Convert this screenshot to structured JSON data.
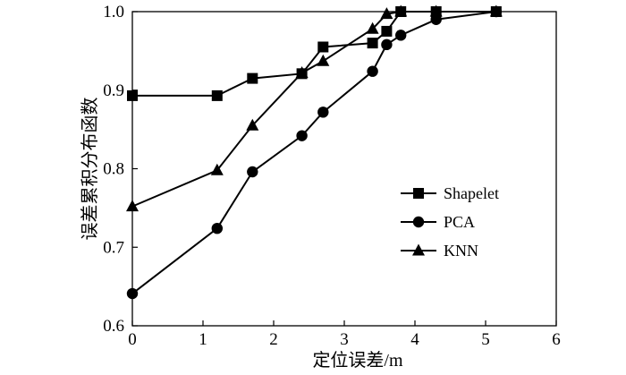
{
  "chart_data": {
    "type": "line",
    "title": "",
    "xlabel": "定位误差/m",
    "ylabel": "误差累积分布函数",
    "xlim": [
      0,
      6
    ],
    "ylim": [
      0.6,
      1.0
    ],
    "xticks": [
      0,
      1,
      2,
      3,
      4,
      5,
      6
    ],
    "yticks": [
      0.6,
      0.7,
      0.8,
      0.9,
      1.0
    ],
    "xtick_labels": [
      "0",
      "1",
      "2",
      "3",
      "4",
      "5",
      "6"
    ],
    "ytick_labels": [
      "0.6",
      "0.7",
      "0.8",
      "0.9",
      "1.0"
    ],
    "legend_position": "center-right",
    "grid": false,
    "series": [
      {
        "name": "Shapelet",
        "marker": "square",
        "x": [
          0,
          1.2,
          1.7,
          2.4,
          2.7,
          3.4,
          3.6,
          3.8,
          4.3,
          5.15
        ],
        "values": [
          0.893,
          0.893,
          0.915,
          0.921,
          0.955,
          0.96,
          0.975,
          1.0,
          1.0,
          1.0
        ]
      },
      {
        "name": "PCA",
        "marker": "circle",
        "x": [
          0,
          1.2,
          1.7,
          2.4,
          2.7,
          3.4,
          3.6,
          3.8,
          4.3,
          5.15
        ],
        "values": [
          0.641,
          0.724,
          0.796,
          0.842,
          0.872,
          0.924,
          0.958,
          0.97,
          0.99,
          1.0
        ]
      },
      {
        "name": "KNN",
        "marker": "triangle",
        "x": [
          0,
          1.2,
          1.7,
          2.4,
          2.7,
          3.4,
          3.6,
          3.8,
          4.3,
          5.15
        ],
        "values": [
          0.752,
          0.798,
          0.855,
          0.922,
          0.937,
          0.978,
          0.997,
          1.0,
          1.0,
          1.0
        ]
      }
    ]
  }
}
